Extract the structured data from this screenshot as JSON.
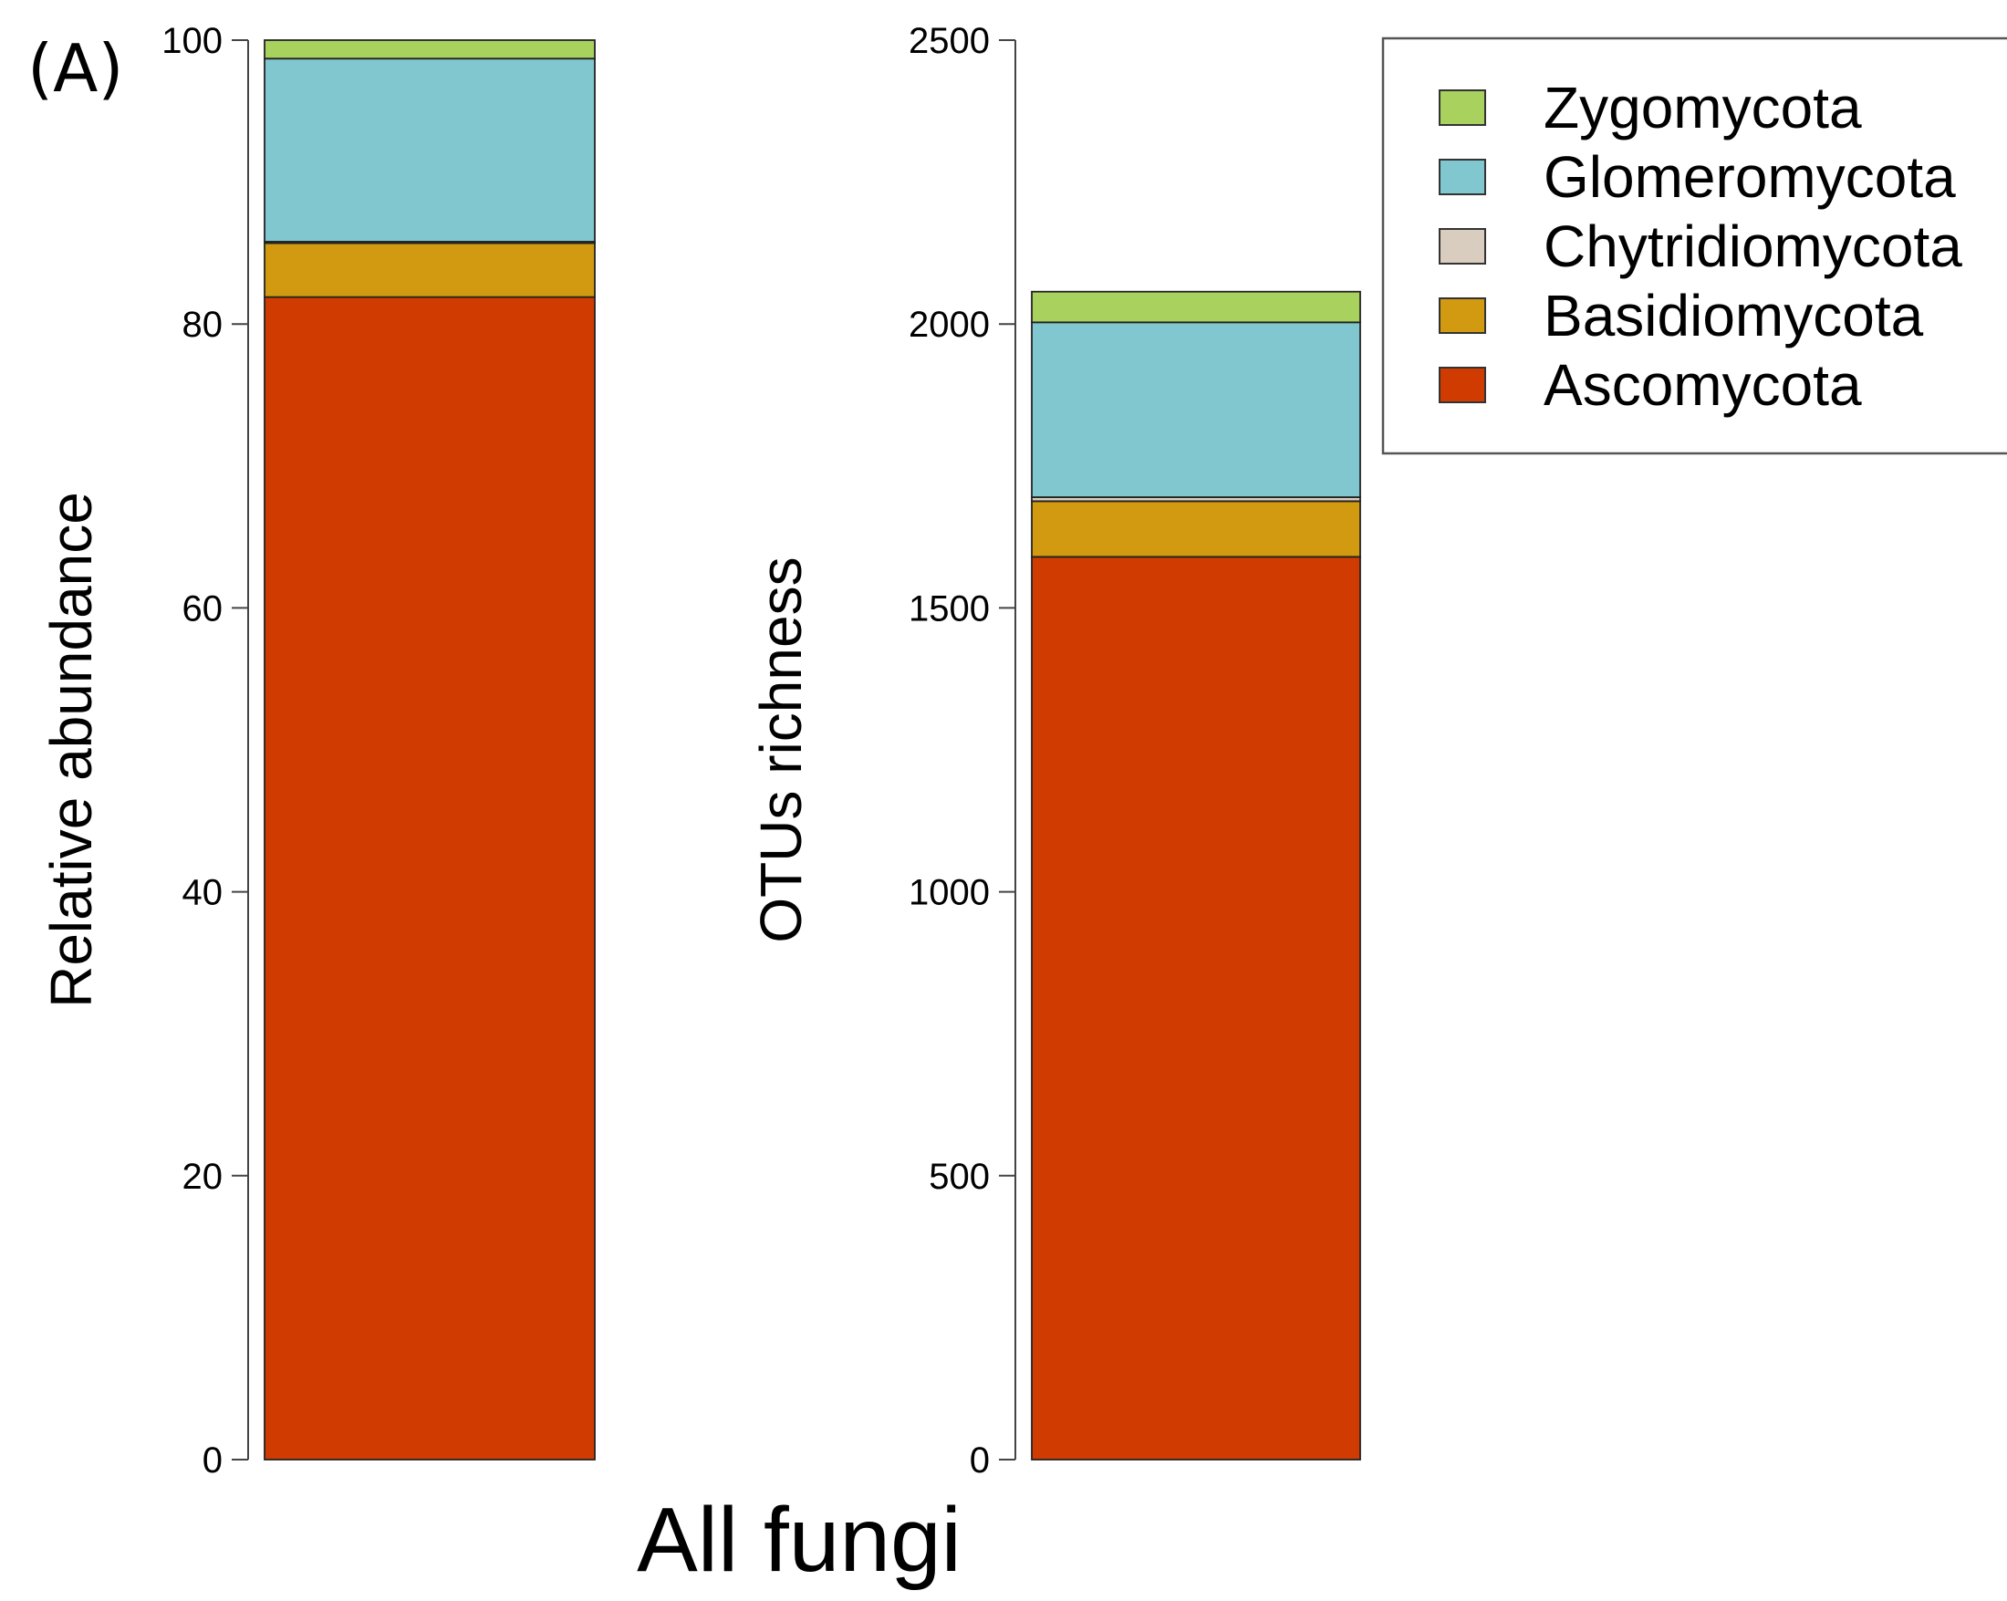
{
  "figure": {
    "panel_label": "(A)",
    "group_label": "All fungi"
  },
  "chart_data": [
    {
      "type": "bar",
      "stacked": true,
      "categories": [
        "All fungi"
      ],
      "xlabel": "",
      "ylabel": "Relative abundance",
      "ylim": [
        0,
        100
      ],
      "yticks": [
        0,
        20,
        40,
        60,
        80,
        100
      ],
      "grid": false,
      "series": [
        {
          "name": "Ascomycota",
          "values": [
            81.9
          ],
          "color": "#cf3b00"
        },
        {
          "name": "Basidiomycota",
          "values": [
            3.8
          ],
          "color": "#d19a10"
        },
        {
          "name": "Chytridiomycota",
          "values": [
            0.1
          ],
          "color": "#d9cdbf"
        },
        {
          "name": "Glomeromycota",
          "values": [
            12.9
          ],
          "color": "#80c7cf"
        },
        {
          "name": "Zygomycota",
          "values": [
            1.3
          ],
          "color": "#a8d15e"
        }
      ]
    },
    {
      "type": "bar",
      "stacked": true,
      "categories": [
        "All fungi"
      ],
      "xlabel": "",
      "ylabel": "OTUs richness",
      "ylim": [
        0,
        2500
      ],
      "yticks": [
        0,
        500,
        1000,
        1500,
        2000,
        2500
      ],
      "grid": false,
      "series": [
        {
          "name": "Ascomycota",
          "values": [
            1590
          ],
          "color": "#cf3b00"
        },
        {
          "name": "Basidiomycota",
          "values": [
            98
          ],
          "color": "#d19a10"
        },
        {
          "name": "Chytridiomycota",
          "values": [
            7
          ],
          "color": "#d9cdbf"
        },
        {
          "name": "Glomeromycota",
          "values": [
            308
          ],
          "color": "#80c7cf"
        },
        {
          "name": "Zygomycota",
          "values": [
            54
          ],
          "color": "#a8d15e"
        }
      ]
    }
  ],
  "legend": {
    "placement": "top-right",
    "items": [
      {
        "label": "Zygomycota",
        "color": "#a8d15e"
      },
      {
        "label": "Glomeromycota",
        "color": "#80c7cf"
      },
      {
        "label": "Chytridiomycota",
        "color": "#d9cdbf"
      },
      {
        "label": "Basidiomycota",
        "color": "#d19a10"
      },
      {
        "label": "Ascomycota",
        "color": "#cf3b00"
      }
    ]
  }
}
